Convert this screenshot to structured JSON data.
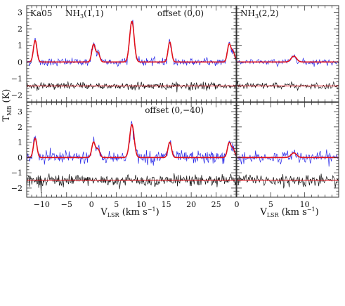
{
  "figure": {
    "y_axis_label": "T",
    "y_axis_label_sub": "MB",
    "y_axis_label_unit": " (K)",
    "x_axis_label": "V",
    "x_axis_label_sub": "LSR",
    "x_axis_label_unit": " (km s",
    "x_axis_label_exp": "−1",
    "x_axis_label_close": ")"
  },
  "chart_data": [
    {
      "type": "line",
      "panel": "top-left",
      "annotations": [
        "Ka05",
        "NH3(1,1)",
        "offset (0,0)"
      ],
      "xlim": [
        -13,
        29
      ],
      "ylim": [
        -2.4,
        3.4
      ],
      "yticks": [
        -2,
        -1,
        0,
        1,
        2,
        3
      ],
      "xticks": [
        -10,
        -5,
        0,
        5,
        10,
        15,
        20,
        25
      ],
      "colors": {
        "observed": "#2a2ae8",
        "fit": "#e0101a",
        "residual": "#111111"
      },
      "noise_obs": 0.12,
      "noise_res": 0.11,
      "residual_offset": -1.45,
      "lines": [
        {
          "v": -11.3,
          "peak": 1.3,
          "sigma": 0.35
        },
        {
          "v": 0.4,
          "peak": 1.05,
          "sigma": 0.35
        },
        {
          "v": 1.3,
          "peak": 0.55,
          "sigma": 0.35
        },
        {
          "v": 8.1,
          "peak": 2.45,
          "sigma": 0.45
        },
        {
          "v": 15.7,
          "peak": 1.2,
          "sigma": 0.35
        },
        {
          "v": 27.6,
          "peak": 1.05,
          "sigma": 0.35
        },
        {
          "v": 28.4,
          "peak": 0.6,
          "sigma": 0.35
        }
      ]
    },
    {
      "type": "line",
      "panel": "top-right",
      "annotations": [
        "NH3(2,2)"
      ],
      "xlim": [
        0,
        15
      ],
      "ylim": [
        -2.4,
        3.4
      ],
      "xticks": [
        0,
        5,
        10
      ],
      "colors": {
        "observed": "#2a2ae8",
        "fit": "#e0101a",
        "residual": "#111111"
      },
      "noise_obs": 0.1,
      "noise_res": 0.1,
      "residual_offset": -1.45,
      "lines": [
        {
          "v": 8.4,
          "peak": 0.35,
          "sigma": 0.4
        }
      ]
    },
    {
      "type": "line",
      "panel": "bottom-left",
      "annotations": [
        "offset (0,−40)"
      ],
      "xlim": [
        -13,
        29
      ],
      "ylim": [
        -2.6,
        3.6
      ],
      "yticks": [
        -2,
        -1,
        0,
        1,
        2,
        3
      ],
      "xticks": [
        -10,
        -5,
        0,
        5,
        10,
        15,
        20,
        25
      ],
      "colors": {
        "observed": "#2a2ae8",
        "fit": "#e0101a",
        "residual": "#111111"
      },
      "noise_obs": 0.2,
      "noise_res": 0.2,
      "residual_offset": -1.5,
      "lines": [
        {
          "v": -11.3,
          "peak": 1.25,
          "sigma": 0.35
        },
        {
          "v": 0.4,
          "peak": 1.0,
          "sigma": 0.35
        },
        {
          "v": 1.3,
          "peak": 0.55,
          "sigma": 0.35
        },
        {
          "v": 8.1,
          "peak": 2.15,
          "sigma": 0.45
        },
        {
          "v": 15.7,
          "peak": 1.0,
          "sigma": 0.35
        },
        {
          "v": 27.6,
          "peak": 0.95,
          "sigma": 0.35
        },
        {
          "v": 28.4,
          "peak": 0.55,
          "sigma": 0.35
        }
      ]
    },
    {
      "type": "line",
      "panel": "bottom-right",
      "annotations": [],
      "xlim": [
        0,
        15
      ],
      "ylim": [
        -2.6,
        3.6
      ],
      "xticks": [
        0,
        5,
        10
      ],
      "colors": {
        "observed": "#2a2ae8",
        "fit": "#e0101a",
        "residual": "#111111"
      },
      "noise_obs": 0.2,
      "noise_res": 0.2,
      "residual_offset": -1.5,
      "lines": [
        {
          "v": 8.4,
          "peak": 0.3,
          "sigma": 0.4
        }
      ]
    }
  ]
}
